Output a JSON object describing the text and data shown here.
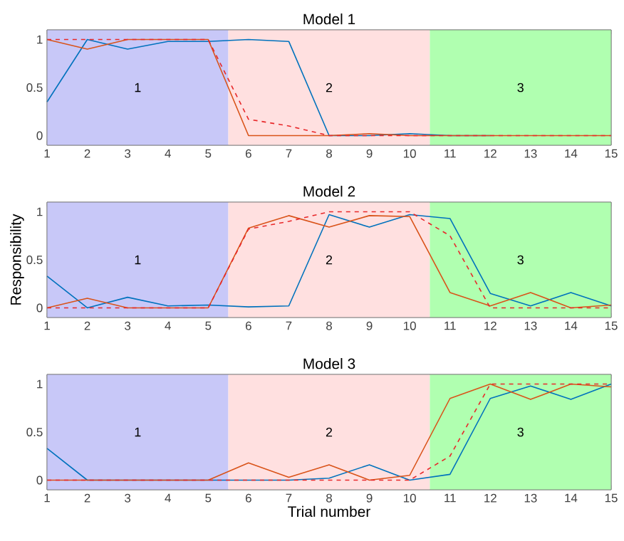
{
  "chart_data": [
    {
      "type": "line",
      "title": "Model 1",
      "x": [
        1,
        2,
        3,
        4,
        5,
        6,
        7,
        8,
        9,
        10,
        11,
        12,
        13,
        14,
        15
      ],
      "xlim": [
        1,
        15
      ],
      "xticks": [
        1,
        2,
        3,
        4,
        5,
        6,
        7,
        8,
        9,
        10,
        11,
        12,
        13,
        14,
        15
      ],
      "ylim": [
        -0.1,
        1.1
      ],
      "yticks": [
        0,
        0.5,
        1
      ],
      "marker": "none",
      "bands": [
        {
          "axis": "x",
          "from": 1,
          "to": 5.5,
          "label": "1",
          "color": "#c8c8f8"
        },
        {
          "axis": "x",
          "from": 5.5,
          "to": 10.5,
          "label": "2",
          "color": "#ffe0e0"
        },
        {
          "axis": "x",
          "from": 10.5,
          "to": 15,
          "label": "3",
          "color": "#b0ffb0"
        }
      ],
      "series": [
        {
          "color": "#0072bd",
          "line_style": "solid",
          "values": [
            0.35,
            1,
            0.9,
            0.98,
            0.98,
            1,
            0.98,
            0,
            0,
            0.02,
            0,
            0,
            null,
            null,
            null
          ]
        },
        {
          "color": "#d95319",
          "line_style": "solid",
          "values": [
            1,
            0.9,
            1,
            1,
            1,
            0,
            0,
            0,
            0.02,
            0,
            0,
            0,
            0,
            0,
            0
          ]
        },
        {
          "color": "#e8282a",
          "line_style": "dashed",
          "values": [
            1,
            1,
            1,
            1,
            1,
            0.17,
            0.1,
            0,
            0,
            0,
            0,
            0,
            0,
            0,
            0
          ]
        }
      ]
    },
    {
      "type": "line",
      "title": "Model 2",
      "ylabel": "Responsibility",
      "x": [
        1,
        2,
        3,
        4,
        5,
        6,
        7,
        8,
        9,
        10,
        11,
        12,
        13,
        14,
        15
      ],
      "xlim": [
        1,
        15
      ],
      "xticks": [
        1,
        2,
        3,
        4,
        5,
        6,
        7,
        8,
        9,
        10,
        11,
        12,
        13,
        14,
        15
      ],
      "ylim": [
        -0.1,
        1.1
      ],
      "yticks": [
        0,
        0.5,
        1
      ],
      "marker": "none",
      "bands": [
        {
          "axis": "x",
          "from": 1,
          "to": 5.5,
          "label": "1",
          "color": "#c8c8f8"
        },
        {
          "axis": "x",
          "from": 5.5,
          "to": 10.5,
          "label": "2",
          "color": "#ffe0e0"
        },
        {
          "axis": "x",
          "from": 10.5,
          "to": 15,
          "label": "3",
          "color": "#b0ffb0"
        }
      ],
      "series": [
        {
          "color": "#0072bd",
          "line_style": "solid",
          "values": [
            0.33,
            0,
            0.11,
            0.02,
            0.03,
            0.01,
            0.02,
            0.97,
            0.84,
            0.97,
            0.93,
            0.15,
            0.02,
            0.16,
            0.02
          ]
        },
        {
          "color": "#d95319",
          "line_style": "solid",
          "values": [
            0,
            0.1,
            0,
            0,
            0,
            0.83,
            0.96,
            0.84,
            0.96,
            0.95,
            0.16,
            0.02,
            0.16,
            0,
            0.03
          ]
        },
        {
          "color": "#e8282a",
          "line_style": "dashed",
          "values": [
            0,
            0,
            0,
            0,
            0,
            0.82,
            0.9,
            1,
            1,
            1,
            0.75,
            0,
            0,
            0,
            0
          ]
        }
      ]
    },
    {
      "type": "line",
      "title": "Model 3",
      "xlabel": "Trial number",
      "x": [
        1,
        2,
        3,
        4,
        5,
        6,
        7,
        8,
        9,
        10,
        11,
        12,
        13,
        14,
        15
      ],
      "xlim": [
        1,
        15
      ],
      "xticks": [
        1,
        2,
        3,
        4,
        5,
        6,
        7,
        8,
        9,
        10,
        11,
        12,
        13,
        14,
        15
      ],
      "ylim": [
        -0.1,
        1.1
      ],
      "yticks": [
        0,
        0.5,
        1
      ],
      "marker": "none",
      "bands": [
        {
          "axis": "x",
          "from": 1,
          "to": 5.5,
          "label": "1",
          "color": "#c8c8f8"
        },
        {
          "axis": "x",
          "from": 5.5,
          "to": 10.5,
          "label": "2",
          "color": "#ffe0e0"
        },
        {
          "axis": "x",
          "from": 10.5,
          "to": 15,
          "label": "3",
          "color": "#b0ffb0"
        }
      ],
      "series": [
        {
          "color": "#0072bd",
          "line_style": "solid",
          "values": [
            0.33,
            0,
            0,
            0,
            0,
            0,
            0,
            0.02,
            0.16,
            0,
            0.06,
            0.85,
            0.98,
            0.84,
            1
          ]
        },
        {
          "color": "#d95319",
          "line_style": "solid",
          "values": [
            0,
            0,
            0,
            0,
            0,
            0.18,
            0.03,
            0.16,
            0,
            0.05,
            0.85,
            1,
            0.84,
            1,
            0.97
          ]
        },
        {
          "color": "#e8282a",
          "line_style": "dashed",
          "values": [
            0,
            0,
            0,
            0,
            0,
            0,
            0,
            0,
            0,
            0,
            0.25,
            1,
            1,
            1,
            1
          ]
        }
      ]
    }
  ]
}
